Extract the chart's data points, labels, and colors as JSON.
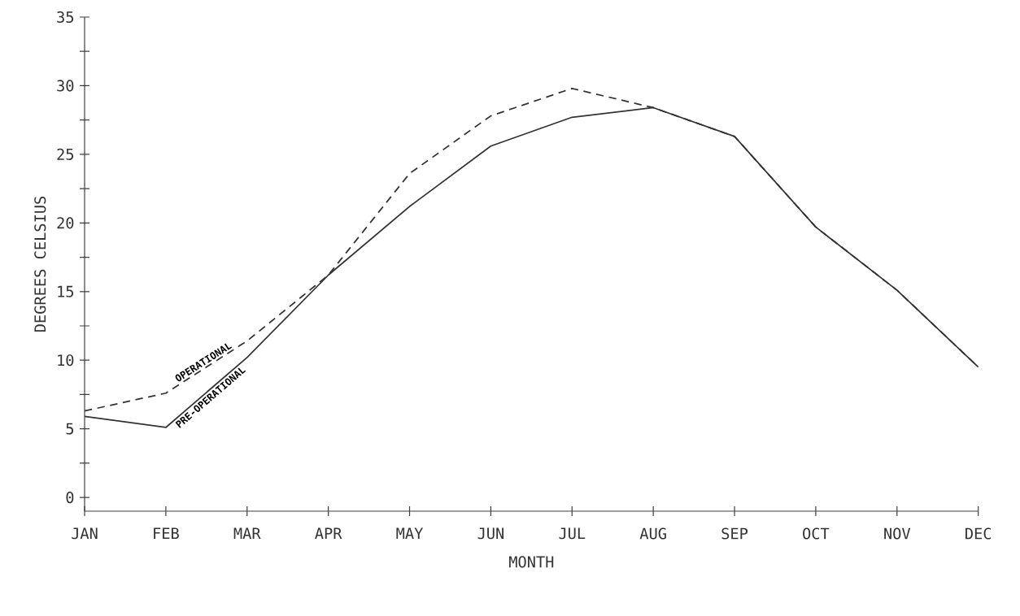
{
  "chart_data": {
    "type": "line",
    "xlabel": "MONTH",
    "ylabel": "DEGREES CELSIUS",
    "categories": [
      "JAN",
      "FEB",
      "MAR",
      "APR",
      "MAY",
      "JUN",
      "JUL",
      "AUG",
      "SEP",
      "OCT",
      "NOV",
      "DEC"
    ],
    "series": [
      {
        "name": "OPERATIONAL",
        "color": "#333333",
        "line_style": "dashed",
        "values": [
          6.3,
          7.6,
          11.4,
          16.2,
          23.6,
          27.8,
          29.8,
          28.4,
          26.3,
          19.7,
          15.1,
          9.5
        ]
      },
      {
        "name": "PRE-OPERATIONAL",
        "color": "#333333",
        "line_style": "solid",
        "values": [
          5.9,
          5.1,
          10.2,
          16.2,
          21.2,
          25.6,
          27.7,
          28.4,
          26.3,
          19.7,
          15.1,
          9.5
        ]
      }
    ],
    "ylim": [
      -1,
      35
    ],
    "yticks": [
      0,
      {
        "value": 2.5,
        "label": null
      },
      5,
      {
        "value": 7.5,
        "label": null
      },
      10,
      {
        "value": 12.5,
        "label": null
      },
      15,
      {
        "value": 17.5,
        "label": null
      },
      20,
      {
        "value": 22.5,
        "label": null
      },
      25,
      {
        "value": 27.5,
        "label": null
      },
      30,
      {
        "value": 32.5,
        "label": null
      },
      35
    ],
    "grid": false,
    "legend": false,
    "marker": "none"
  }
}
